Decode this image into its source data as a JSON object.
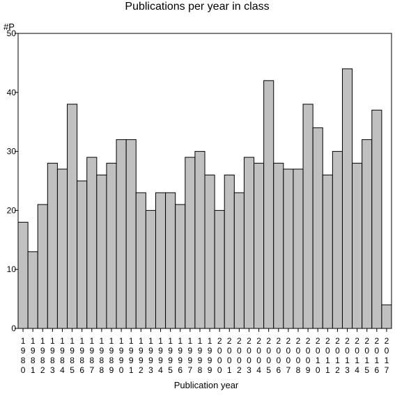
{
  "chart_data": {
    "type": "bar",
    "title": "Publications per year in class",
    "ylabel": "#P",
    "xlabel": "Publication year",
    "categories": [
      "1980",
      "1981",
      "1982",
      "1983",
      "1984",
      "1985",
      "1986",
      "1987",
      "1988",
      "1989",
      "1990",
      "1991",
      "1992",
      "1993",
      "1994",
      "1995",
      "1996",
      "1997",
      "1998",
      "1999",
      "2000",
      "2001",
      "2002",
      "2003",
      "2004",
      "2005",
      "2006",
      "2007",
      "2008",
      "2009",
      "2010",
      "2011",
      "2012",
      "2013",
      "2014",
      "2015",
      "2016",
      "2017"
    ],
    "values": [
      18,
      13,
      21,
      28,
      27,
      38,
      25,
      29,
      26,
      28,
      32,
      32,
      23,
      20,
      23,
      23,
      21,
      29,
      30,
      26,
      20,
      26,
      23,
      29,
      28,
      42,
      28,
      27,
      27,
      38,
      34,
      26,
      30,
      44,
      28,
      32,
      37,
      4
    ],
    "ylim": [
      0,
      50
    ],
    "yticks": [
      "0",
      "10",
      "20",
      "30",
      "40",
      "50"
    ],
    "grid": false,
    "colors": {
      "bar_fill": "#c0c0c0",
      "bar_stroke": "#000000",
      "axis": "#000000"
    }
  }
}
